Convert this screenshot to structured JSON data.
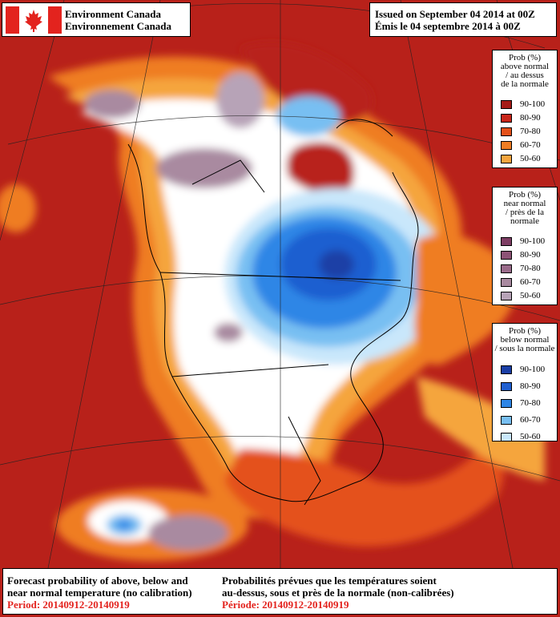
{
  "header": {
    "agency_en": "Environment Canada",
    "agency_fr": "Environnement Canada",
    "issued_en": "Issued on September 04 2014 at 00Z",
    "issued_fr": "Émis le 04 septembre 2014 à 00Z"
  },
  "legend": {
    "above": {
      "title_lines": [
        "Prob (%)",
        "above normal",
        "/ au dessus",
        "de la normale"
      ],
      "items": [
        {
          "label": "90-100",
          "color": "#a51b16"
        },
        {
          "label": "80-90",
          "color": "#c8261a"
        },
        {
          "label": "70-80",
          "color": "#e4511a"
        },
        {
          "label": "60-70",
          "color": "#ef7d24"
        },
        {
          "label": "50-60",
          "color": "#f5a53e"
        }
      ]
    },
    "near": {
      "title_lines": [
        "Prob (%)",
        "near normal",
        "/ près de la",
        "normale"
      ],
      "items": [
        {
          "label": "90-100",
          "color": "#7e3e64"
        },
        {
          "label": "80-90",
          "color": "#8d5376"
        },
        {
          "label": "70-80",
          "color": "#9a6b8a"
        },
        {
          "label": "60-70",
          "color": "#a98aa0"
        },
        {
          "label": "50-60",
          "color": "#b7a3b7"
        }
      ]
    },
    "below": {
      "title_lines": [
        "Prob (%)",
        "below normal",
        "/ sous la normale"
      ],
      "items": [
        {
          "label": "90-100",
          "color": "#1a3fa6"
        },
        {
          "label": "80-90",
          "color": "#1f5fd0"
        },
        {
          "label": "70-80",
          "color": "#2f86e6"
        },
        {
          "label": "60-70",
          "color": "#78bff2"
        },
        {
          "label": "50-60",
          "color": "#c9e7fb"
        }
      ]
    }
  },
  "footer": {
    "en_lines": [
      "Forecast probability of above, below and",
      "near normal temperature (no calibration)"
    ],
    "en_period": "Period: 20140912-20140919",
    "fr_lines": [
      "Probabilités prévues que les températures soient",
      "au-dessus, sous et près de la normale (non-calibrées)"
    ],
    "fr_period": "Période: 20140912-20140919"
  }
}
